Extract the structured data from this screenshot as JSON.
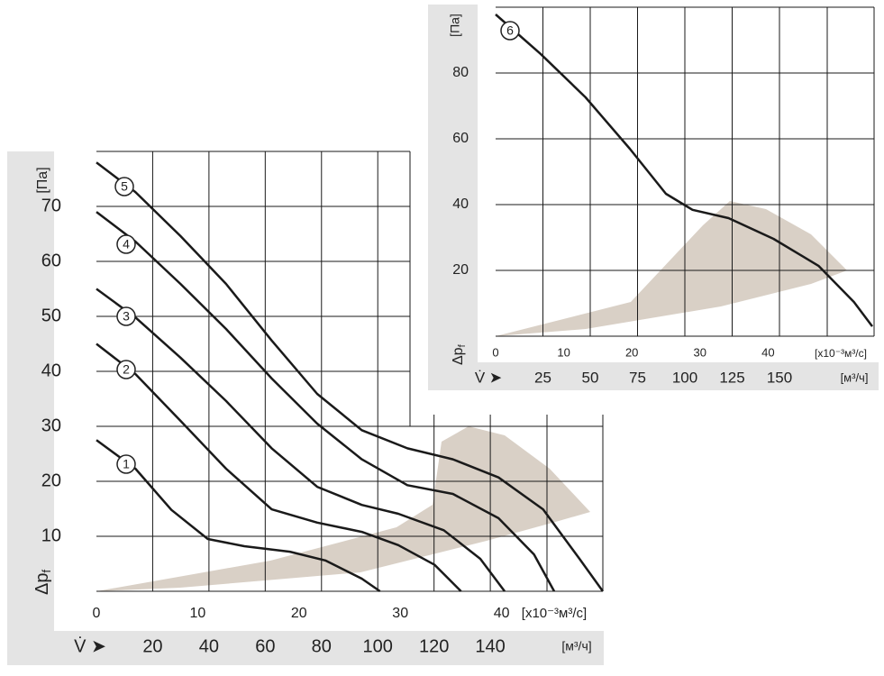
{
  "chart_data": [
    {
      "type": "line",
      "x_unit_label": "[x10⁻³м³/с]",
      "x2_unit_label": "[м³/ч]",
      "x_symbol": "V̇ ➤",
      "y_label": "Δp",
      "y_label_sub": "f",
      "y_unit_label": "[Па]",
      "xlim": [
        0,
        50
      ],
      "xticks": [
        0,
        10,
        20,
        30,
        40
      ],
      "x2lim": [
        0,
        180
      ],
      "x2ticks": [
        20,
        40,
        60,
        80,
        100,
        120,
        140
      ],
      "ylim": [
        0,
        80
      ],
      "yticks": [
        10,
        20,
        30,
        40,
        50,
        60,
        70
      ],
      "grid": true,
      "series": [
        {
          "name": "1",
          "color": "#1a1a1a",
          "x": [
            0,
            3.85,
            7.4,
            11,
            14.6,
            19.1,
            22.6,
            26.2,
            28
          ],
          "values": [
            27.5,
            22.3,
            14.8,
            9.5,
            8.2,
            7.2,
            5.6,
            2.3,
            0
          ]
        },
        {
          "name": "2",
          "color": "#1a1a1a",
          "x": [
            0,
            3.85,
            8.3,
            12.8,
            17.3,
            21.8,
            26.2,
            29.8,
            33.4,
            36
          ],
          "values": [
            45,
            39.5,
            31,
            22.3,
            14.9,
            12.5,
            10.8,
            8.4,
            4.8,
            0
          ]
        },
        {
          "name": "3",
          "color": "#1a1a1a",
          "x": [
            0,
            3.85,
            8.3,
            12.8,
            17.3,
            21.8,
            26.2,
            29.8,
            34.3,
            37.9,
            40.3
          ],
          "values": [
            55,
            49.8,
            42.5,
            34.6,
            26,
            19,
            15.7,
            14.1,
            11.1,
            5.9,
            0
          ]
        },
        {
          "name": "4",
          "color": "#1a1a1a",
          "x": [
            0,
            3.85,
            8.3,
            12.8,
            17.3,
            21.8,
            26.2,
            30.7,
            35.2,
            39.7,
            43.2,
            45.2
          ],
          "values": [
            69,
            63.6,
            55.9,
            47.7,
            38.7,
            30.5,
            24,
            19.3,
            17.7,
            13.3,
            6.7,
            0
          ]
        },
        {
          "name": "5",
          "color": "#1a1a1a",
          "x": [
            0,
            3.85,
            8.3,
            12.8,
            17.3,
            21.8,
            26.2,
            30.7,
            35.2,
            39.7,
            44.1,
            47.7,
            50
          ],
          "values": [
            78,
            72.6,
            64.6,
            55.9,
            45.6,
            35.9,
            29.3,
            26,
            24,
            20.7,
            14.9,
            5.9,
            0
          ]
        }
      ]
    },
    {
      "type": "line",
      "x_unit_label": "[x10⁻³м³/с]",
      "x2_unit_label": "[м³/ч]",
      "x_symbol": "V̇ ➤",
      "y_label": "Δp",
      "y_label_sub": "f",
      "y_unit_label": "[Па]",
      "xlim": [
        0,
        55.56
      ],
      "xticks": [
        0,
        10,
        20,
        30,
        40
      ],
      "x2lim": [
        0,
        200
      ],
      "x2ticks": [
        25,
        50,
        75,
        100,
        125,
        150
      ],
      "ylim": [
        0,
        100
      ],
      "yticks": [
        20,
        40,
        60,
        80
      ],
      "grid": true,
      "series": [
        {
          "name": "6",
          "color": "#1a1a1a",
          "x": [
            0,
            6.6,
            13.2,
            19.7,
            25,
            28.9,
            34.2,
            40.8,
            47.4,
            52.6,
            55.3
          ],
          "values": [
            97.8,
            85.8,
            72.6,
            57,
            43.3,
            38.4,
            35.9,
            29.6,
            21.4,
            10.4,
            3
          ]
        }
      ]
    }
  ]
}
